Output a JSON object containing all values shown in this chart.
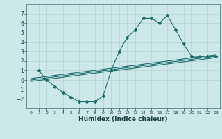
{
  "xlabel": "Humidex (Indice chaleur)",
  "ylabel": "",
  "background_color": "#cde8e8",
  "grid_color": "#b8d4d4",
  "line_color": "#1a6b6b",
  "xlim": [
    -0.5,
    23.5
  ],
  "ylim": [
    -3.0,
    8.0
  ],
  "xticks": [
    0,
    1,
    2,
    3,
    4,
    5,
    6,
    7,
    8,
    9,
    10,
    11,
    12,
    13,
    14,
    15,
    16,
    17,
    18,
    19,
    20,
    21,
    22,
    23
  ],
  "yticks": [
    -2,
    -1,
    0,
    1,
    2,
    3,
    4,
    5,
    6,
    7
  ],
  "series1_x": [
    1,
    2,
    3,
    4,
    5,
    6,
    7,
    8,
    9,
    10,
    11,
    12,
    13,
    14,
    15,
    16,
    17,
    18,
    19,
    20,
    21,
    22,
    23
  ],
  "series1_y": [
    1.0,
    0.0,
    -0.7,
    -1.3,
    -1.8,
    -2.3,
    -2.3,
    -2.3,
    -1.7,
    1.0,
    3.0,
    4.5,
    5.3,
    6.5,
    6.5,
    6.0,
    6.8,
    5.3,
    3.8,
    2.5,
    2.5,
    2.5,
    2.5
  ],
  "series2_x": [
    0,
    23
  ],
  "series2_y": [
    0.0,
    2.5
  ],
  "series3_x": [
    0,
    23
  ],
  "series3_y": [
    -0.15,
    2.35
  ],
  "series4_x": [
    0,
    23
  ],
  "series4_y": [
    0.15,
    2.65
  ],
  "xlabel_fontsize": 6.5,
  "tick_fontsize": 5.5
}
